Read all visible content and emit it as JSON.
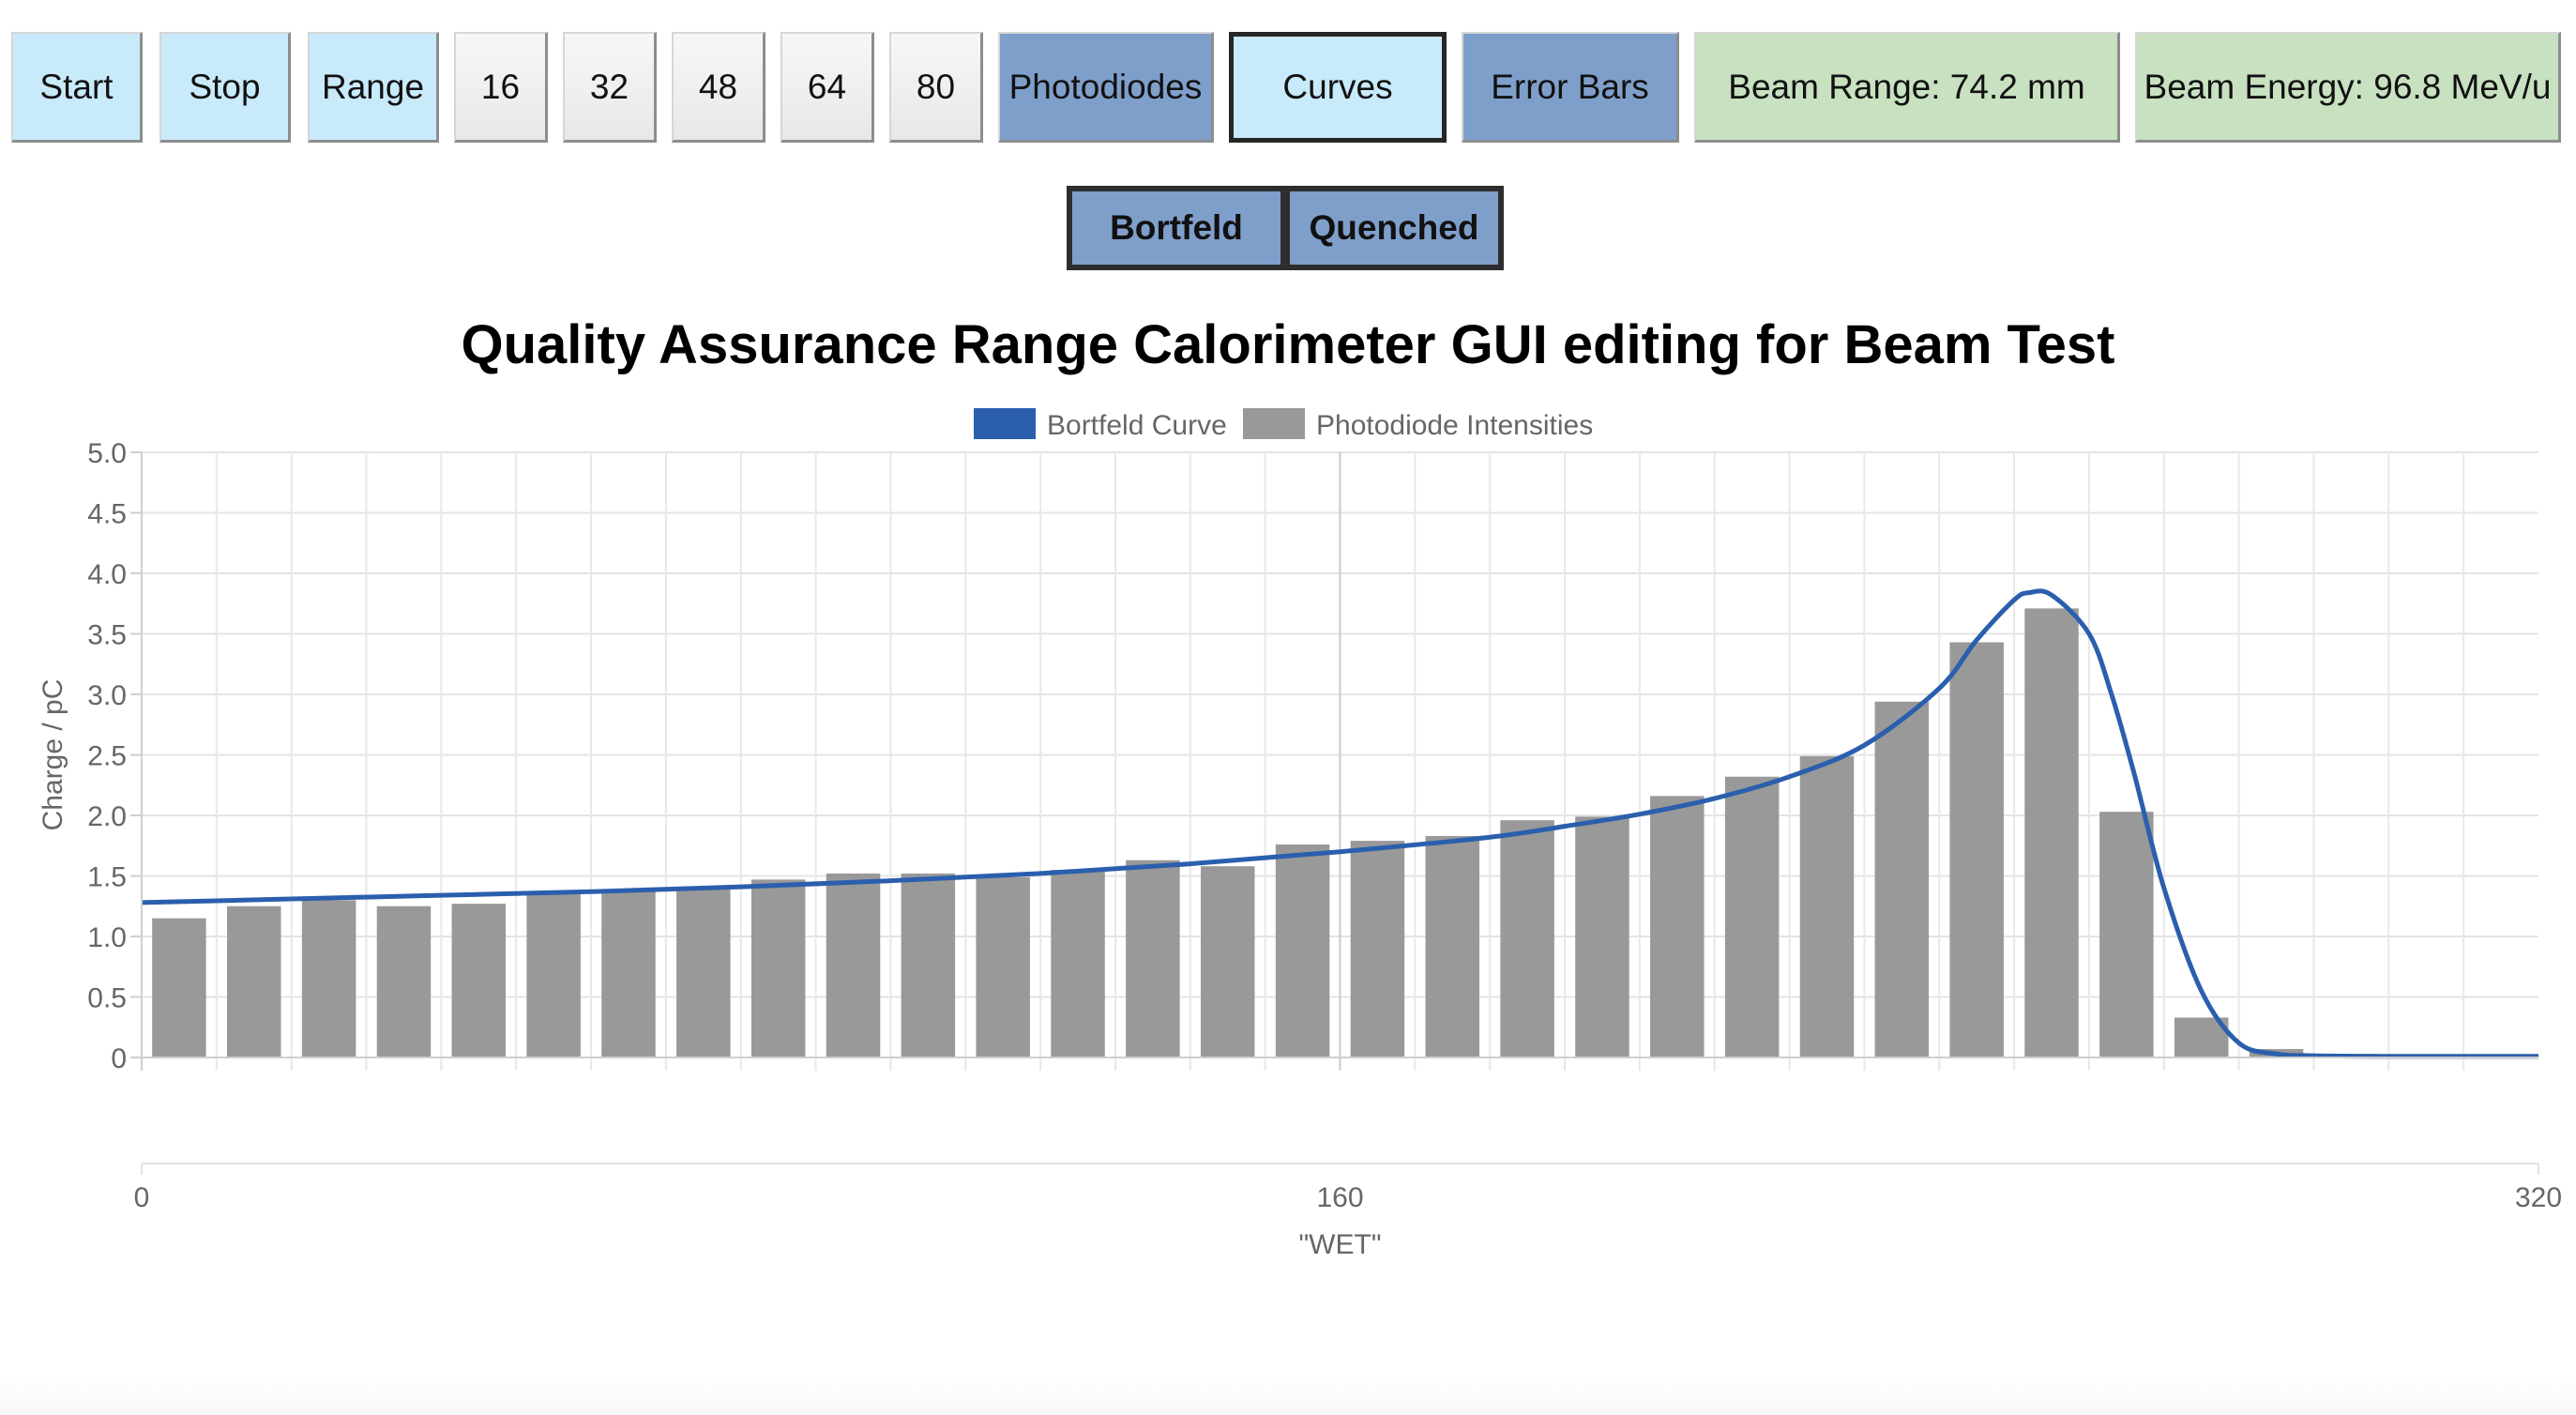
{
  "toolbar": {
    "start_label": "Start",
    "stop_label": "Stop",
    "range_label": "Range",
    "preset_16": "16",
    "preset_32": "32",
    "preset_48": "48",
    "preset_64": "64",
    "preset_80": "80",
    "photodiodes_label": "Photodiodes",
    "curves_label": "Curves",
    "error_bars_label": "Error Bars",
    "beam_range": "Beam Range: 74.2 mm",
    "beam_energy": "Beam Energy: 96.8 MeV/u"
  },
  "mode_buttons": {
    "bortfeld_label": "Bortfeld",
    "quenched_label": "Quenched"
  },
  "colors": {
    "button_light": "#c8eafb",
    "button_steel": "#7f9fcb",
    "readout_green": "#c8e1c1",
    "curve_blue": "#2b5fad",
    "bar_gray": "#999999"
  },
  "chart_data": {
    "type": "bar",
    "title": "Quality Assurance Range Calorimeter GUI editing for Beam Test",
    "xlabel": "\"WET\"",
    "ylabel": "Charge / pC",
    "xlim": [
      0,
      320
    ],
    "ylim": [
      0,
      5.0
    ],
    "x_ticks": [
      "0",
      "160",
      "320"
    ],
    "y_ticks": [
      "0",
      "0.5",
      "1.0",
      "1.5",
      "2.0",
      "2.5",
      "3.0",
      "3.5",
      "4.0",
      "4.5",
      "5.0"
    ],
    "grid": true,
    "legend_position": "top-center",
    "legend": [
      "Bortfeld Curve",
      "Photodiode Intensities"
    ],
    "series": [
      {
        "name": "Photodiode Intensities",
        "type": "bar",
        "color": "#999999",
        "x": [
          5,
          15,
          25,
          35,
          45,
          55,
          65,
          75,
          85,
          95,
          105,
          115,
          125,
          135,
          145,
          155,
          165,
          175,
          185,
          195,
          205,
          215,
          225,
          235,
          245,
          255,
          265,
          275,
          285,
          295,
          305,
          315
        ],
        "values": [
          1.15,
          1.25,
          1.3,
          1.25,
          1.27,
          1.35,
          1.38,
          1.4,
          1.47,
          1.52,
          1.52,
          1.49,
          1.55,
          1.63,
          1.58,
          1.76,
          1.79,
          1.83,
          1.96,
          1.99,
          2.16,
          2.32,
          2.49,
          2.94,
          3.43,
          3.71,
          2.03,
          0.33,
          0.07,
          0.03,
          0.01,
          0.01
        ]
      },
      {
        "name": "Bortfeld Curve",
        "type": "line",
        "color": "#2b5fad",
        "x": [
          0,
          20,
          40,
          60,
          80,
          100,
          120,
          140,
          160,
          180,
          190,
          200,
          210,
          220,
          230,
          240,
          245,
          250,
          252,
          255,
          260,
          263,
          266,
          270,
          275,
          280,
          285,
          290,
          300,
          320
        ],
        "values": [
          1.28,
          1.31,
          1.34,
          1.37,
          1.41,
          1.46,
          1.52,
          1.6,
          1.7,
          1.82,
          1.91,
          2.01,
          2.14,
          2.32,
          2.58,
          3.05,
          3.45,
          3.78,
          3.84,
          3.82,
          3.5,
          3.0,
          2.35,
          1.4,
          0.55,
          0.12,
          0.03,
          0.015,
          0.01,
          0.01
        ]
      }
    ]
  }
}
